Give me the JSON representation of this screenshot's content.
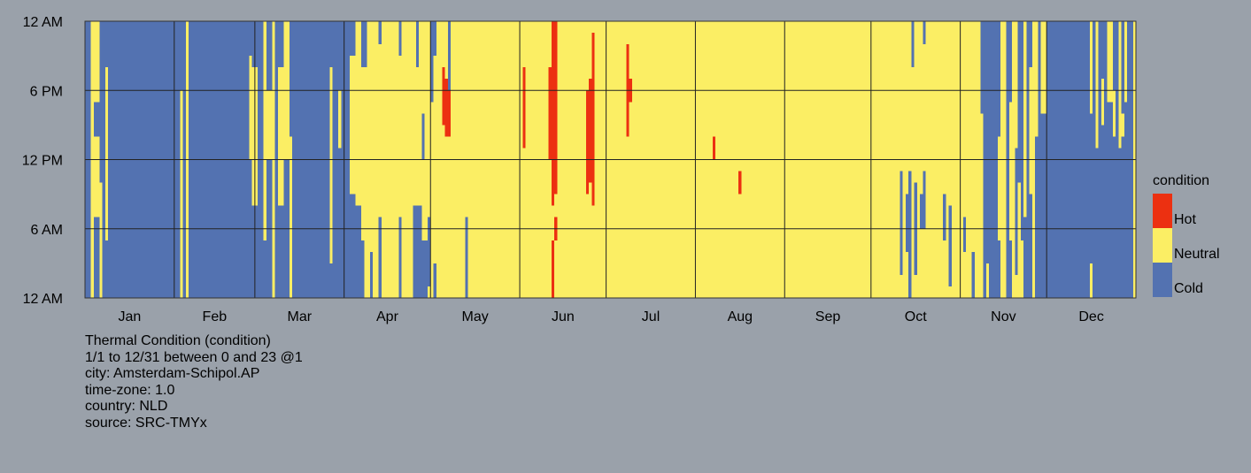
{
  "chart_data": {
    "type": "heatmap",
    "title": "Thermal Condition (condition)",
    "legend": {
      "title": "condition",
      "position": "right",
      "entries": [
        {
          "label": "Hot",
          "color": "#ec3011"
        },
        {
          "label": "Neutral",
          "color": "#fbee64"
        },
        {
          "label": "Cold",
          "color": "#5372b1"
        }
      ]
    },
    "x_axis": {
      "range_days": [
        1,
        365
      ],
      "tick_labels": [
        "Jan",
        "Feb",
        "Mar",
        "Apr",
        "May",
        "Jun",
        "Jul",
        "Aug",
        "Sep",
        "Oct",
        "Nov",
        "Dec"
      ]
    },
    "y_axis": {
      "range_hours": [
        0,
        24
      ],
      "tick_labels": [
        {
          "hour": 24,
          "label": "12 AM"
        },
        {
          "hour": 18,
          "label": "6 PM"
        },
        {
          "hour": 12,
          "label": "12 PM"
        },
        {
          "hour": 6,
          "label": "6 AM"
        },
        {
          "hour": 0,
          "label": "12 AM"
        }
      ]
    },
    "grid": true,
    "background_condition": "Neutral",
    "cold_spans": [
      [
        1,
        3,
        0,
        24
      ],
      [
        4,
        6,
        0,
        7
      ],
      [
        4,
        6,
        14,
        17
      ],
      [
        6,
        7,
        10,
        24
      ],
      [
        7,
        8,
        0,
        24
      ],
      [
        8,
        11,
        0,
        5
      ],
      [
        8,
        11,
        20,
        24
      ],
      [
        9,
        34,
        0,
        24
      ],
      [
        25,
        26,
        0,
        2
      ],
      [
        30,
        31,
        0,
        1
      ],
      [
        34,
        35,
        18,
        24
      ],
      [
        35,
        36,
        0,
        24
      ],
      [
        37,
        40,
        0,
        24
      ],
      [
        40,
        58,
        0,
        24
      ],
      [
        46,
        47,
        0,
        3
      ],
      [
        52,
        53,
        20,
        24
      ],
      [
        55,
        56,
        0,
        2
      ],
      [
        58,
        59,
        0,
        12
      ],
      [
        58,
        59,
        21,
        24
      ],
      [
        59,
        61,
        0,
        8
      ],
      [
        59,
        61,
        20,
        24
      ],
      [
        61,
        63,
        0,
        24
      ],
      [
        63,
        64,
        0,
        5
      ],
      [
        64,
        66,
        0,
        12
      ],
      [
        64,
        66,
        18,
        24
      ],
      [
        67,
        68,
        0,
        24
      ],
      [
        68,
        70,
        0,
        8
      ],
      [
        68,
        70,
        20,
        24
      ],
      [
        70,
        72,
        0,
        12
      ],
      [
        72,
        73,
        14,
        24
      ],
      [
        73,
        86,
        0,
        24
      ],
      [
        77,
        78,
        0,
        5
      ],
      [
        86,
        87,
        0,
        3
      ],
      [
        86,
        87,
        20,
        24
      ],
      [
        87,
        89,
        0,
        24
      ],
      [
        89,
        90,
        0,
        13
      ],
      [
        89,
        90,
        18,
        24
      ],
      [
        90,
        93,
        0,
        24
      ],
      [
        93,
        95,
        0,
        9
      ],
      [
        93,
        95,
        21,
        24
      ],
      [
        95,
        97,
        0,
        8
      ],
      [
        97,
        98,
        0,
        5
      ],
      [
        97,
        99,
        20,
        24
      ],
      [
        100,
        101,
        0,
        4
      ],
      [
        103,
        104,
        0,
        7
      ],
      [
        103,
        104,
        22,
        24
      ],
      [
        110,
        111,
        0,
        7
      ],
      [
        110,
        111,
        21,
        24
      ],
      [
        115,
        118,
        0,
        8
      ],
      [
        116,
        117,
        20,
        24
      ],
      [
        118,
        120,
        0,
        5
      ],
      [
        120,
        121,
        1,
        7
      ],
      [
        118,
        119,
        12,
        16
      ],
      [
        121,
        122,
        17,
        24
      ],
      [
        122,
        123,
        0,
        3
      ],
      [
        122,
        123,
        21,
        24
      ],
      [
        127,
        128,
        17,
        24
      ],
      [
        133,
        134,
        0,
        7
      ],
      [
        284,
        285,
        2,
        11
      ],
      [
        286,
        287,
        4,
        9
      ],
      [
        287,
        288,
        0,
        11
      ],
      [
        289,
        290,
        2,
        10
      ],
      [
        291,
        292,
        6,
        9
      ],
      [
        292,
        293,
        6,
        11
      ],
      [
        288,
        289,
        20,
        24
      ],
      [
        292,
        293,
        22,
        24
      ],
      [
        299,
        300,
        5,
        9
      ],
      [
        301,
        302,
        1,
        8
      ],
      [
        306,
        307,
        4,
        7
      ],
      [
        309,
        310,
        0,
        4
      ],
      [
        312,
        313,
        16,
        24
      ],
      [
        313,
        314,
        0,
        24
      ],
      [
        314,
        315,
        3,
        24
      ],
      [
        315,
        318,
        0,
        24
      ],
      [
        318,
        319,
        0,
        5
      ],
      [
        318,
        319,
        14,
        24
      ],
      [
        321,
        322,
        0,
        24
      ],
      [
        322,
        323,
        0,
        5
      ],
      [
        322,
        323,
        17,
        24
      ],
      [
        324,
        325,
        2,
        13
      ],
      [
        325,
        326,
        10,
        24
      ],
      [
        326,
        327,
        5,
        24
      ],
      [
        327,
        328,
        0,
        7
      ],
      [
        328,
        329,
        0,
        24
      ],
      [
        329,
        330,
        0,
        9
      ],
      [
        329,
        330,
        20,
        24
      ],
      [
        331,
        332,
        0,
        14
      ],
      [
        332,
        333,
        0,
        24
      ],
      [
        333,
        335,
        0,
        16
      ],
      [
        335,
        350,
        0,
        24
      ],
      [
        350,
        351,
        3,
        16
      ],
      [
        351,
        352,
        0,
        24
      ],
      [
        352,
        353,
        0,
        13
      ],
      [
        353,
        354,
        0,
        24
      ],
      [
        354,
        355,
        0,
        15
      ],
      [
        354,
        355,
        19,
        24
      ],
      [
        355,
        356,
        0,
        24
      ],
      [
        356,
        358,
        0,
        17
      ],
      [
        358,
        359,
        0,
        14
      ],
      [
        358,
        359,
        18,
        24
      ],
      [
        359,
        360,
        0,
        24
      ],
      [
        360,
        361,
        0,
        13
      ],
      [
        361,
        362,
        0,
        14
      ],
      [
        361,
        362,
        16,
        24
      ],
      [
        362,
        363,
        0,
        17
      ],
      [
        363,
        364,
        0,
        24
      ],
      [
        364,
        365,
        0,
        24
      ]
    ],
    "hot_spans": [
      [
        125,
        126,
        15,
        20
      ],
      [
        126,
        127,
        14,
        19
      ],
      [
        127,
        128,
        14,
        18
      ],
      [
        153,
        154,
        13,
        20
      ],
      [
        162,
        163,
        12,
        20
      ],
      [
        163,
        164,
        8,
        24
      ],
      [
        164,
        165,
        9,
        24
      ],
      [
        163,
        164,
        0,
        5
      ],
      [
        164,
        165,
        5,
        7
      ],
      [
        175,
        176,
        9,
        18
      ],
      [
        176,
        177,
        10,
        19
      ],
      [
        177,
        178,
        8,
        23
      ],
      [
        189,
        190,
        14,
        22
      ],
      [
        190,
        191,
        17,
        19
      ],
      [
        219,
        220,
        12,
        14
      ],
      [
        228,
        229,
        9,
        11
      ]
    ],
    "caption": {
      "period": "1/1 to 12/31 between 0 and 23 @1",
      "city": "city: Amsterdam-Schipol.AP",
      "time_zone": "time-zone: 1.0",
      "country": "country: NLD",
      "source": "source: SRC-TMYx"
    }
  }
}
